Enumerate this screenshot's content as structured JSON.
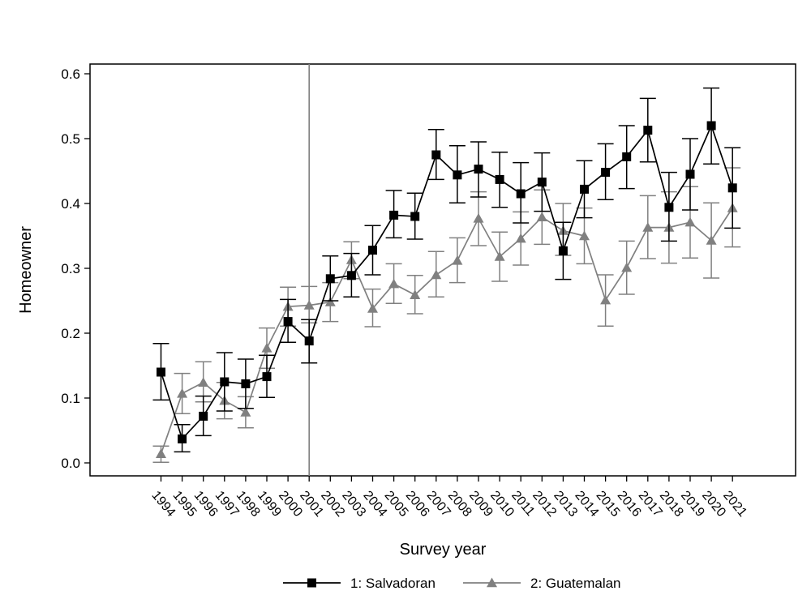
{
  "chart_data": {
    "type": "line",
    "title": "",
    "xlabel": "Survey year",
    "ylabel": "Homeowner",
    "x": [
      "1994",
      "1995",
      "1996",
      "1997",
      "1998",
      "1999",
      "2000",
      "2001",
      "2002",
      "2003",
      "2004",
      "2005",
      "2006",
      "2007",
      "2008",
      "2009",
      "2010",
      "2011",
      "2012",
      "2013",
      "2014",
      "2015",
      "2016",
      "2017",
      "2018",
      "2019",
      "2020",
      "2021"
    ],
    "ylim": [
      -0.02,
      0.615
    ],
    "yticks": [
      "0.0",
      "0.1",
      "0.2",
      "0.3",
      "0.4",
      "0.5",
      "0.6"
    ],
    "reference_line_x": "2001",
    "grid": false,
    "legend_position": "bottom",
    "series": [
      {
        "name": "1: Salvadoran",
        "color": "#000000",
        "marker": "square",
        "values": [
          0.14,
          0.037,
          0.072,
          0.125,
          0.122,
          0.133,
          0.218,
          0.188,
          0.284,
          0.289,
          0.328,
          0.382,
          0.38,
          0.475,
          0.444,
          0.453,
          0.437,
          0.415,
          0.433,
          0.327,
          0.422,
          0.448,
          0.472,
          0.513,
          0.394,
          0.445,
          0.52,
          0.424
        ],
        "lower": [
          0.097,
          0.017,
          0.042,
          0.08,
          0.084,
          0.101,
          0.186,
          0.154,
          0.25,
          0.256,
          0.29,
          0.347,
          0.345,
          0.437,
          0.401,
          0.41,
          0.394,
          0.37,
          0.388,
          0.283,
          0.378,
          0.406,
          0.423,
          0.464,
          0.342,
          0.39,
          0.461,
          0.362
        ],
        "upper": [
          0.184,
          0.059,
          0.103,
          0.17,
          0.16,
          0.166,
          0.252,
          0.221,
          0.319,
          0.323,
          0.366,
          0.42,
          0.416,
          0.514,
          0.489,
          0.495,
          0.479,
          0.463,
          0.478,
          0.371,
          0.466,
          0.492,
          0.52,
          0.562,
          0.448,
          0.5,
          0.578,
          0.486
        ]
      },
      {
        "name": "2: Guatemalan",
        "color": "#808080",
        "marker": "triangle",
        "values": [
          0.014,
          0.107,
          0.124,
          0.096,
          0.078,
          0.177,
          0.241,
          0.243,
          0.248,
          0.313,
          0.238,
          0.276,
          0.259,
          0.29,
          0.312,
          0.377,
          0.318,
          0.346,
          0.379,
          0.358,
          0.35,
          0.251,
          0.301,
          0.363,
          0.363,
          0.371,
          0.343,
          0.393
        ],
        "lower": [
          0.001,
          0.076,
          0.094,
          0.068,
          0.054,
          0.146,
          0.211,
          0.216,
          0.218,
          0.284,
          0.21,
          0.246,
          0.23,
          0.256,
          0.278,
          0.335,
          0.28,
          0.305,
          0.337,
          0.32,
          0.307,
          0.211,
          0.26,
          0.315,
          0.308,
          0.316,
          0.285,
          0.333
        ],
        "upper": [
          0.026,
          0.138,
          0.156,
          0.124,
          0.102,
          0.208,
          0.271,
          0.272,
          0.278,
          0.341,
          0.268,
          0.307,
          0.289,
          0.326,
          0.347,
          0.418,
          0.356,
          0.387,
          0.421,
          0.4,
          0.393,
          0.29,
          0.342,
          0.412,
          0.418,
          0.426,
          0.401,
          0.455
        ]
      }
    ]
  }
}
